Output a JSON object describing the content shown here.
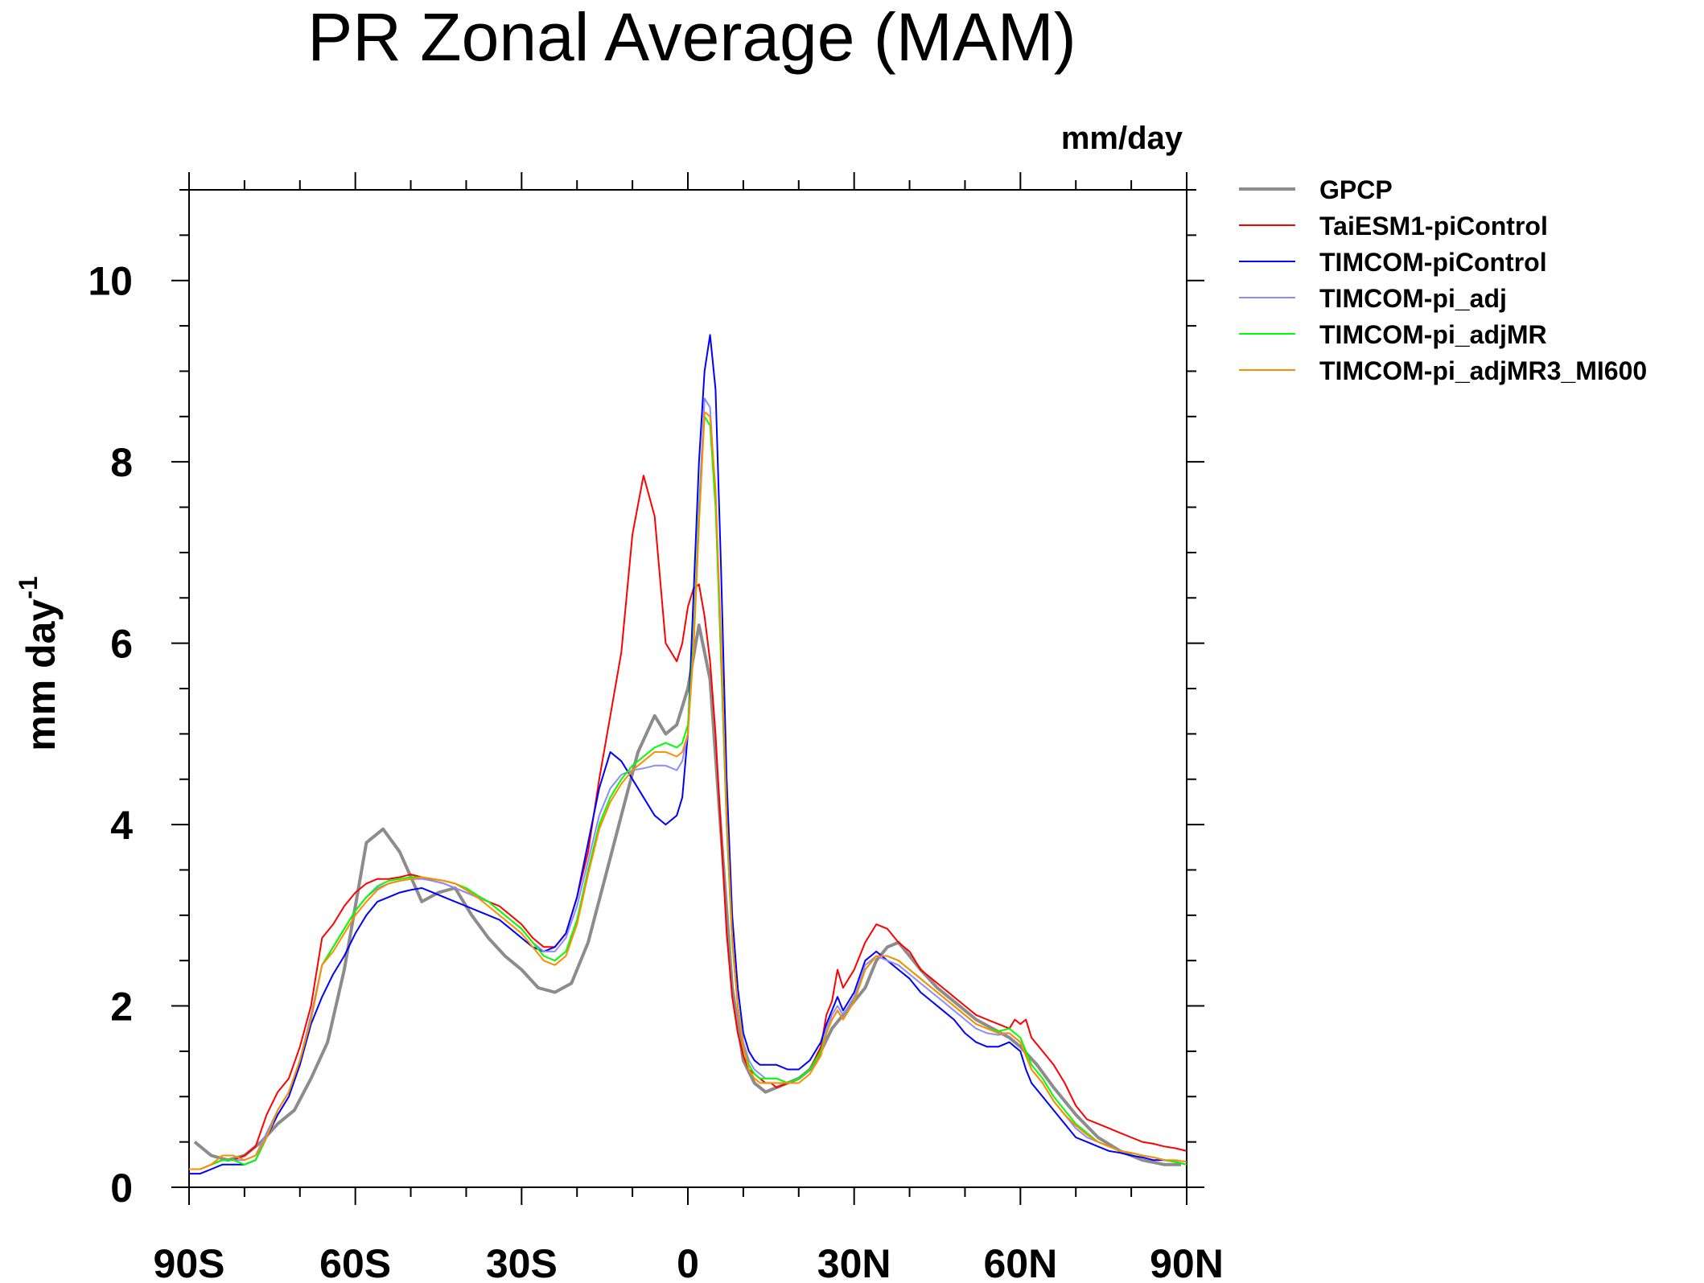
{
  "chart_data": {
    "type": "line",
    "title": "PR Zonal Average (MAM)",
    "units_label": "mm/day",
    "ylabel": "mm day",
    "ylabel_sup": "-1",
    "xlim": [
      -90,
      90
    ],
    "ylim": [
      0,
      11
    ],
    "xticks": [
      -90,
      -60,
      -30,
      0,
      30,
      60,
      90
    ],
    "xtick_labels": [
      "90S",
      "60S",
      "30S",
      "0",
      "30N",
      "60N",
      "90N"
    ],
    "yticks": [
      0,
      2,
      4,
      6,
      8,
      10
    ],
    "ytick_labels": [
      "0",
      "2",
      "4",
      "6",
      "8",
      "10"
    ],
    "legend_position": "right",
    "series": [
      {
        "name": "GPCP",
        "color": "#8c8c8c",
        "width": 4,
        "x": [
          -89,
          -86,
          -83,
          -80,
          -77,
          -74,
          -71,
          -68,
          -65,
          -62,
          -60,
          -58,
          -55,
          -52,
          -48,
          -45,
          -42,
          -39,
          -36,
          -33,
          -30,
          -27,
          -24,
          -21,
          -18,
          -15,
          -12,
          -9,
          -6,
          -4,
          -2,
          0,
          2,
          4,
          6,
          8,
          10,
          12,
          14,
          16,
          18,
          20,
          22,
          24,
          26,
          28,
          30,
          32,
          34,
          36,
          38,
          40,
          42,
          45,
          48,
          52,
          55,
          58,
          60,
          63,
          66,
          70,
          74,
          78,
          82,
          86,
          89
        ],
        "y": [
          0.5,
          0.35,
          0.3,
          0.35,
          0.5,
          0.7,
          0.85,
          1.2,
          1.6,
          2.4,
          3.1,
          3.8,
          3.95,
          3.7,
          3.15,
          3.25,
          3.3,
          3.0,
          2.75,
          2.55,
          2.4,
          2.2,
          2.15,
          2.25,
          2.7,
          3.4,
          4.1,
          4.8,
          5.2,
          5.0,
          5.1,
          5.5,
          6.2,
          5.6,
          3.9,
          2.2,
          1.4,
          1.15,
          1.05,
          1.1,
          1.15,
          1.2,
          1.3,
          1.5,
          1.75,
          1.9,
          2.05,
          2.2,
          2.5,
          2.65,
          2.7,
          2.55,
          2.4,
          2.2,
          2.05,
          1.85,
          1.75,
          1.65,
          1.55,
          1.35,
          1.1,
          0.8,
          0.55,
          0.4,
          0.3,
          0.25,
          0.25
        ]
      },
      {
        "name": "TaiESM1-piControl",
        "color": "#ff0000",
        "width": 2,
        "x": [
          -90,
          -88,
          -86,
          -84,
          -82,
          -80,
          -78,
          -76,
          -74,
          -72,
          -70,
          -68,
          -66,
          -64,
          -62,
          -60,
          -58,
          -56,
          -54,
          -52,
          -50,
          -48,
          -46,
          -44,
          -42,
          -40,
          -38,
          -36,
          -34,
          -32,
          -30,
          -28,
          -26,
          -24,
          -22,
          -20,
          -18,
          -16,
          -14,
          -12,
          -10,
          -8,
          -6,
          -4,
          -2,
          -1,
          0,
          1,
          2,
          3,
          4,
          5,
          6,
          7,
          8,
          9,
          10,
          11,
          12,
          13,
          14,
          15,
          16,
          18,
          20,
          22,
          24,
          25,
          26,
          27,
          28,
          29,
          30,
          32,
          34,
          36,
          38,
          40,
          42,
          44,
          46,
          48,
          50,
          52,
          54,
          56,
          58,
          59,
          60,
          61,
          62,
          64,
          66,
          68,
          70,
          72,
          74,
          76,
          78,
          80,
          82,
          84,
          86,
          88,
          90
        ],
        "y": [
          0.2,
          0.2,
          0.25,
          0.3,
          0.3,
          0.35,
          0.45,
          0.8,
          1.05,
          1.2,
          1.55,
          2.0,
          2.75,
          2.9,
          3.1,
          3.25,
          3.35,
          3.4,
          3.4,
          3.42,
          3.45,
          3.42,
          3.38,
          3.35,
          3.3,
          3.25,
          3.2,
          3.15,
          3.1,
          3.0,
          2.9,
          2.75,
          2.65,
          2.65,
          2.8,
          3.2,
          3.7,
          4.5,
          5.2,
          5.9,
          7.2,
          7.85,
          7.4,
          6.0,
          5.8,
          6.0,
          6.4,
          6.6,
          6.65,
          6.3,
          5.8,
          5.0,
          3.9,
          2.8,
          2.1,
          1.7,
          1.45,
          1.3,
          1.25,
          1.2,
          1.15,
          1.15,
          1.1,
          1.15,
          1.2,
          1.3,
          1.55,
          1.9,
          2.05,
          2.4,
          2.2,
          2.3,
          2.4,
          2.7,
          2.9,
          2.85,
          2.7,
          2.6,
          2.4,
          2.3,
          2.2,
          2.1,
          2.0,
          1.9,
          1.85,
          1.8,
          1.75,
          1.85,
          1.8,
          1.85,
          1.65,
          1.5,
          1.35,
          1.15,
          0.9,
          0.75,
          0.7,
          0.65,
          0.6,
          0.55,
          0.5,
          0.48,
          0.45,
          0.43,
          0.4
        ]
      },
      {
        "name": "TIMCOM-piControl",
        "color": "#0000ff",
        "width": 2,
        "x": [
          -90,
          -88,
          -86,
          -84,
          -82,
          -80,
          -78,
          -76,
          -74,
          -72,
          -70,
          -68,
          -66,
          -64,
          -62,
          -60,
          -58,
          -56,
          -54,
          -52,
          -50,
          -48,
          -46,
          -44,
          -42,
          -40,
          -38,
          -36,
          -34,
          -32,
          -30,
          -28,
          -26,
          -24,
          -22,
          -20,
          -18,
          -16,
          -14,
          -12,
          -10,
          -8,
          -6,
          -4,
          -2,
          -1,
          0,
          1,
          2,
          3,
          4,
          5,
          6,
          7,
          8,
          9,
          10,
          11,
          12,
          13,
          14,
          15,
          16,
          18,
          20,
          22,
          24,
          25,
          26,
          27,
          28,
          29,
          30,
          32,
          34,
          36,
          38,
          40,
          42,
          44,
          46,
          48,
          50,
          52,
          54,
          56,
          58,
          59,
          60,
          61,
          62,
          64,
          66,
          68,
          70,
          72,
          74,
          76,
          78,
          80,
          82,
          84,
          86,
          88,
          90
        ],
        "y": [
          0.15,
          0.15,
          0.2,
          0.25,
          0.25,
          0.25,
          0.3,
          0.55,
          0.8,
          1.0,
          1.35,
          1.8,
          2.1,
          2.35,
          2.55,
          2.8,
          3.0,
          3.15,
          3.2,
          3.25,
          3.28,
          3.3,
          3.25,
          3.2,
          3.15,
          3.1,
          3.05,
          3.0,
          2.95,
          2.85,
          2.75,
          2.65,
          2.6,
          2.65,
          2.8,
          3.2,
          3.8,
          4.4,
          4.8,
          4.7,
          4.5,
          4.3,
          4.1,
          4.0,
          4.1,
          4.3,
          5.0,
          6.5,
          8.0,
          9.0,
          9.4,
          8.8,
          6.8,
          4.5,
          3.0,
          2.2,
          1.7,
          1.5,
          1.4,
          1.35,
          1.35,
          1.35,
          1.35,
          1.3,
          1.3,
          1.4,
          1.6,
          1.8,
          1.95,
          2.1,
          1.95,
          2.05,
          2.15,
          2.5,
          2.6,
          2.5,
          2.4,
          2.3,
          2.15,
          2.05,
          1.95,
          1.85,
          1.7,
          1.6,
          1.55,
          1.55,
          1.6,
          1.55,
          1.5,
          1.3,
          1.15,
          1.0,
          0.85,
          0.7,
          0.55,
          0.5,
          0.45,
          0.4,
          0.38,
          0.35,
          0.33,
          0.3,
          0.3,
          0.28,
          0.25
        ]
      },
      {
        "name": "TIMCOM-pi_adj",
        "color": "#8c8cff",
        "width": 2,
        "x": [
          -90,
          -88,
          -86,
          -84,
          -82,
          -80,
          -78,
          -76,
          -74,
          -72,
          -70,
          -68,
          -66,
          -64,
          -62,
          -60,
          -58,
          -56,
          -54,
          -52,
          -50,
          -48,
          -46,
          -44,
          -42,
          -40,
          -38,
          -36,
          -34,
          -32,
          -30,
          -28,
          -26,
          -24,
          -22,
          -20,
          -18,
          -16,
          -14,
          -12,
          -10,
          -8,
          -6,
          -4,
          -2,
          -1,
          0,
          1,
          2,
          3,
          4,
          5,
          6,
          7,
          8,
          9,
          10,
          11,
          12,
          13,
          14,
          15,
          16,
          18,
          20,
          22,
          24,
          25,
          26,
          27,
          28,
          29,
          30,
          32,
          34,
          36,
          38,
          40,
          42,
          44,
          46,
          48,
          50,
          52,
          54,
          56,
          58,
          59,
          60,
          61,
          62,
          64,
          66,
          68,
          70,
          72,
          74,
          76,
          78,
          80,
          82,
          84,
          86,
          88,
          90
        ],
        "y": [
          0.2,
          0.2,
          0.25,
          0.3,
          0.3,
          0.3,
          0.35,
          0.6,
          0.85,
          1.05,
          1.4,
          1.9,
          2.45,
          2.65,
          2.85,
          3.05,
          3.2,
          3.3,
          3.35,
          3.38,
          3.4,
          3.4,
          3.38,
          3.35,
          3.3,
          3.25,
          3.2,
          3.15,
          3.05,
          2.95,
          2.85,
          2.7,
          2.6,
          2.6,
          2.75,
          3.1,
          3.6,
          4.1,
          4.4,
          4.55,
          4.6,
          4.62,
          4.65,
          4.65,
          4.6,
          4.7,
          5.0,
          6.0,
          7.5,
          8.7,
          8.6,
          7.6,
          5.8,
          4.0,
          2.7,
          2.0,
          1.6,
          1.4,
          1.3,
          1.25,
          1.2,
          1.2,
          1.2,
          1.15,
          1.2,
          1.3,
          1.5,
          1.75,
          1.9,
          2.0,
          1.9,
          2.0,
          2.1,
          2.45,
          2.55,
          2.5,
          2.45,
          2.35,
          2.25,
          2.15,
          2.05,
          1.95,
          1.85,
          1.75,
          1.7,
          1.68,
          1.7,
          1.65,
          1.6,
          1.45,
          1.3,
          1.15,
          0.95,
          0.8,
          0.65,
          0.55,
          0.5,
          0.45,
          0.4,
          0.38,
          0.35,
          0.33,
          0.3,
          0.28,
          0.25
        ]
      },
      {
        "name": "TIMCOM-pi_adjMR",
        "color": "#00ff00",
        "width": 2,
        "x": [
          -90,
          -88,
          -86,
          -84,
          -82,
          -80,
          -78,
          -76,
          -74,
          -72,
          -70,
          -68,
          -66,
          -64,
          -62,
          -60,
          -58,
          -56,
          -54,
          -52,
          -50,
          -48,
          -46,
          -44,
          -42,
          -40,
          -38,
          -36,
          -34,
          -32,
          -30,
          -28,
          -26,
          -24,
          -22,
          -20,
          -18,
          -16,
          -14,
          -12,
          -10,
          -8,
          -6,
          -4,
          -2,
          -1,
          0,
          1,
          2,
          3,
          4,
          5,
          6,
          7,
          8,
          9,
          10,
          11,
          12,
          13,
          14,
          15,
          16,
          18,
          20,
          22,
          24,
          25,
          26,
          27,
          28,
          29,
          30,
          32,
          34,
          36,
          38,
          40,
          42,
          44,
          46,
          48,
          50,
          52,
          54,
          56,
          58,
          59,
          60,
          61,
          62,
          64,
          66,
          68,
          70,
          72,
          74,
          76,
          78,
          80,
          82,
          84,
          86,
          88,
          90
        ],
        "y": [
          0.2,
          0.2,
          0.25,
          0.3,
          0.3,
          0.25,
          0.3,
          0.55,
          0.85,
          1.05,
          1.4,
          1.85,
          2.45,
          2.65,
          2.85,
          3.05,
          3.2,
          3.32,
          3.38,
          3.4,
          3.42,
          3.42,
          3.4,
          3.38,
          3.35,
          3.3,
          3.22,
          3.15,
          3.05,
          2.95,
          2.85,
          2.7,
          2.55,
          2.5,
          2.6,
          2.95,
          3.5,
          4.0,
          4.3,
          4.5,
          4.65,
          4.75,
          4.85,
          4.9,
          4.85,
          4.9,
          5.1,
          6.0,
          7.4,
          8.5,
          8.4,
          7.5,
          5.8,
          4.0,
          2.7,
          2.0,
          1.55,
          1.35,
          1.25,
          1.2,
          1.2,
          1.2,
          1.2,
          1.15,
          1.2,
          1.3,
          1.5,
          1.7,
          1.85,
          1.95,
          1.85,
          1.95,
          2.05,
          2.4,
          2.55,
          2.55,
          2.5,
          2.4,
          2.3,
          2.2,
          2.1,
          2.0,
          1.9,
          1.8,
          1.75,
          1.72,
          1.75,
          1.7,
          1.65,
          1.5,
          1.35,
          1.2,
          1.0,
          0.85,
          0.7,
          0.6,
          0.5,
          0.45,
          0.4,
          0.38,
          0.35,
          0.33,
          0.3,
          0.28,
          0.25
        ]
      },
      {
        "name": "TIMCOM-pi_adjMR3_MI600",
        "color": "#ff8c00",
        "width": 2,
        "x": [
          -90,
          -88,
          -86,
          -84,
          -82,
          -80,
          -78,
          -76,
          -74,
          -72,
          -70,
          -68,
          -66,
          -64,
          -62,
          -60,
          -58,
          -56,
          -54,
          -52,
          -50,
          -48,
          -46,
          -44,
          -42,
          -40,
          -38,
          -36,
          -34,
          -32,
          -30,
          -28,
          -26,
          -24,
          -22,
          -20,
          -18,
          -16,
          -14,
          -12,
          -10,
          -8,
          -6,
          -4,
          -2,
          -1,
          0,
          1,
          2,
          3,
          4,
          5,
          6,
          7,
          8,
          9,
          10,
          11,
          12,
          13,
          14,
          15,
          16,
          18,
          20,
          22,
          24,
          25,
          26,
          27,
          28,
          29,
          30,
          32,
          34,
          36,
          38,
          40,
          42,
          44,
          46,
          48,
          50,
          52,
          54,
          56,
          58,
          59,
          60,
          61,
          62,
          64,
          66,
          68,
          70,
          72,
          74,
          76,
          78,
          80,
          82,
          84,
          86,
          88,
          90
        ],
        "y": [
          0.2,
          0.2,
          0.25,
          0.35,
          0.35,
          0.3,
          0.35,
          0.55,
          0.85,
          1.05,
          1.4,
          1.85,
          2.45,
          2.6,
          2.8,
          3.0,
          3.15,
          3.28,
          3.35,
          3.38,
          3.4,
          3.42,
          3.4,
          3.38,
          3.35,
          3.28,
          3.2,
          3.1,
          3.0,
          2.9,
          2.8,
          2.65,
          2.5,
          2.45,
          2.55,
          2.9,
          3.45,
          3.95,
          4.25,
          4.45,
          4.6,
          4.7,
          4.8,
          4.8,
          4.75,
          4.8,
          5.0,
          5.9,
          7.3,
          8.55,
          8.5,
          7.7,
          6.0,
          4.1,
          2.75,
          2.0,
          1.55,
          1.3,
          1.2,
          1.15,
          1.15,
          1.15,
          1.15,
          1.15,
          1.15,
          1.25,
          1.45,
          1.7,
          1.85,
          1.95,
          1.85,
          1.95,
          2.05,
          2.4,
          2.55,
          2.55,
          2.5,
          2.4,
          2.3,
          2.2,
          2.1,
          2.0,
          1.9,
          1.8,
          1.75,
          1.7,
          1.7,
          1.65,
          1.6,
          1.45,
          1.3,
          1.15,
          0.95,
          0.8,
          0.68,
          0.58,
          0.5,
          0.45,
          0.4,
          0.38,
          0.35,
          0.33,
          0.3,
          0.3,
          0.28
        ]
      }
    ]
  }
}
